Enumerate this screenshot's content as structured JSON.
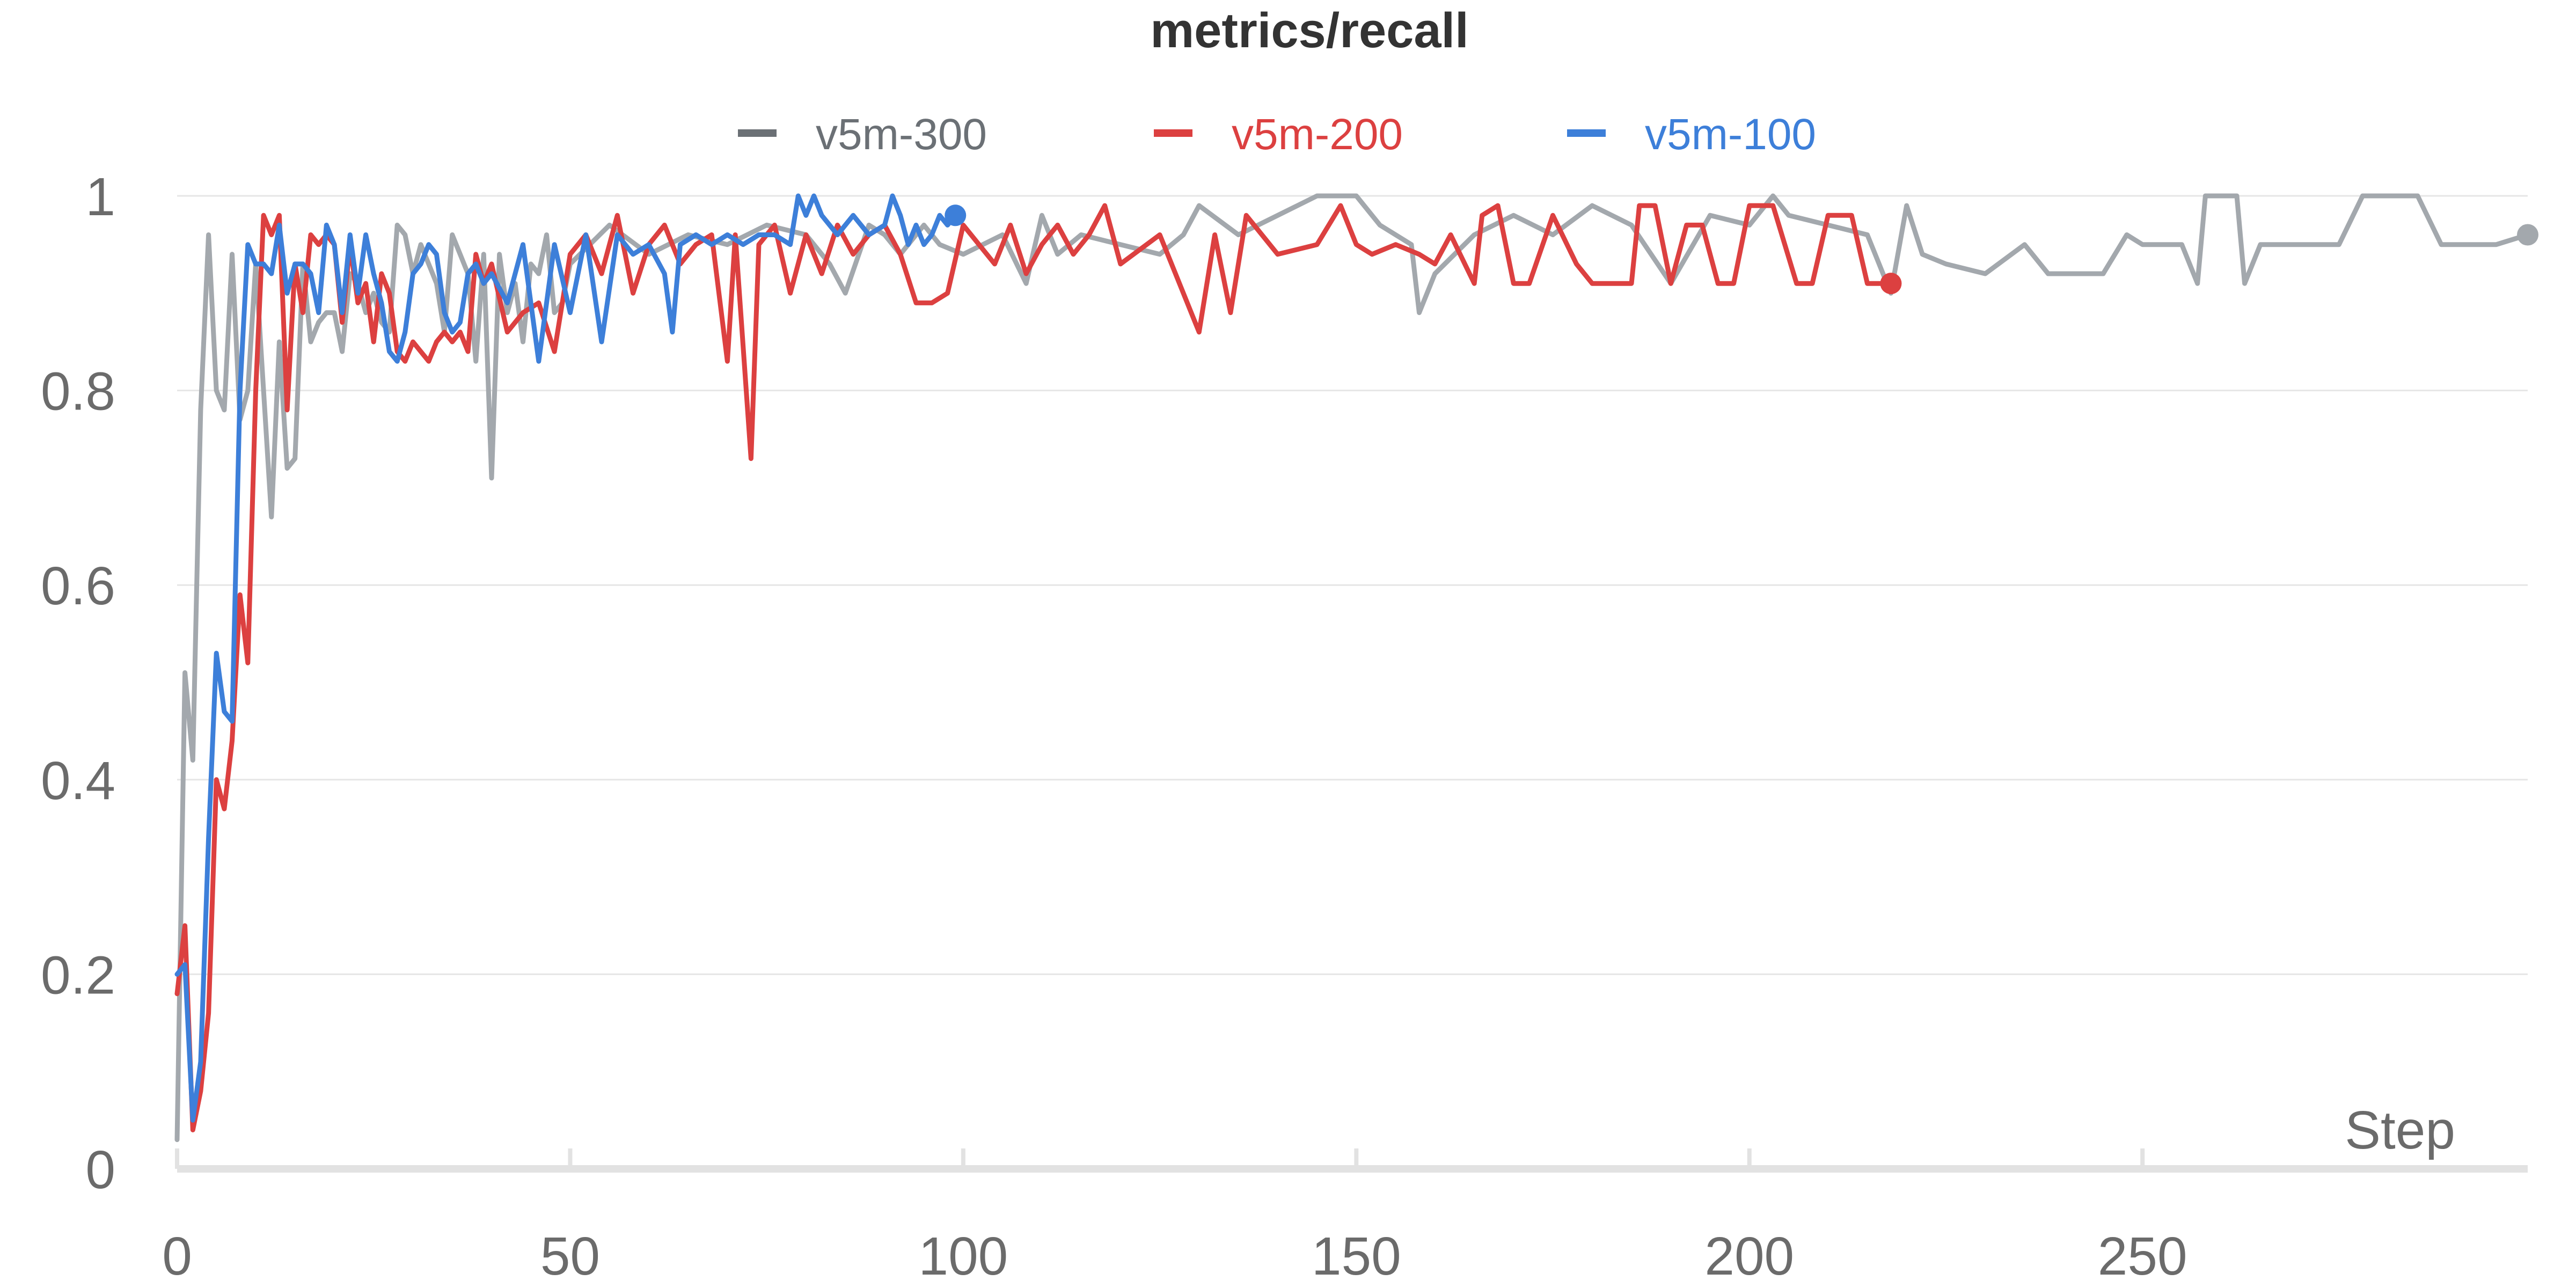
{
  "chart_data": {
    "type": "line",
    "title": "metrics/recall",
    "xlabel": "Step",
    "ylabel": "",
    "xlim": [
      0,
      299
    ],
    "ylim": [
      0,
      1
    ],
    "x_ticks": [
      0,
      50,
      100,
      150,
      200,
      250
    ],
    "y_ticks": [
      0,
      0.2,
      0.4,
      0.6,
      0.8,
      1
    ],
    "y_tick_labels": [
      "0",
      "0.2",
      "0.4",
      "0.6",
      "0.8",
      "1"
    ],
    "grid": true,
    "legend_position": "top-center",
    "series": [
      {
        "name": "v5m-300",
        "color": "#a3a8ad",
        "legend_color": "#6b7075",
        "points": [
          [
            0,
            0.03
          ],
          [
            1,
            0.51
          ],
          [
            2,
            0.42
          ],
          [
            3,
            0.78
          ],
          [
            4,
            0.96
          ],
          [
            5,
            0.8
          ],
          [
            6,
            0.78
          ],
          [
            7,
            0.94
          ],
          [
            8,
            0.77
          ],
          [
            9,
            0.8
          ],
          [
            10,
            0.93
          ],
          [
            11,
            0.8
          ],
          [
            12,
            0.67
          ],
          [
            13,
            0.85
          ],
          [
            14,
            0.72
          ],
          [
            15,
            0.73
          ],
          [
            16,
            0.93
          ],
          [
            17,
            0.85
          ],
          [
            18,
            0.87
          ],
          [
            19,
            0.88
          ],
          [
            20,
            0.88
          ],
          [
            21,
            0.84
          ],
          [
            22,
            0.92
          ],
          [
            23,
            0.91
          ],
          [
            24,
            0.88
          ],
          [
            25,
            0.9
          ],
          [
            26,
            0.87
          ],
          [
            27,
            0.86
          ],
          [
            28,
            0.97
          ],
          [
            29,
            0.96
          ],
          [
            30,
            0.92
          ],
          [
            31,
            0.95
          ],
          [
            32,
            0.93
          ],
          [
            33,
            0.91
          ],
          [
            34,
            0.86
          ],
          [
            35,
            0.96
          ],
          [
            36,
            0.94
          ],
          [
            37,
            0.92
          ],
          [
            38,
            0.83
          ],
          [
            39,
            0.94
          ],
          [
            40,
            0.71
          ],
          [
            41,
            0.94
          ],
          [
            42,
            0.88
          ],
          [
            43,
            0.91
          ],
          [
            44,
            0.85
          ],
          [
            45,
            0.93
          ],
          [
            46,
            0.92
          ],
          [
            47,
            0.96
          ],
          [
            48,
            0.88
          ],
          [
            49,
            0.89
          ],
          [
            50,
            0.93
          ],
          [
            55,
            0.97
          ],
          [
            60,
            0.94
          ],
          [
            65,
            0.96
          ],
          [
            70,
            0.95
          ],
          [
            75,
            0.97
          ],
          [
            80,
            0.96
          ],
          [
            83,
            0.93
          ],
          [
            85,
            0.9
          ],
          [
            88,
            0.97
          ],
          [
            90,
            0.96
          ],
          [
            92,
            0.94
          ],
          [
            95,
            0.97
          ],
          [
            97,
            0.95
          ],
          [
            100,
            0.94
          ],
          [
            105,
            0.96
          ],
          [
            108,
            0.91
          ],
          [
            110,
            0.98
          ],
          [
            112,
            0.94
          ],
          [
            115,
            0.96
          ],
          [
            120,
            0.95
          ],
          [
            125,
            0.94
          ],
          [
            128,
            0.96
          ],
          [
            130,
            0.99
          ],
          [
            135,
            0.96
          ],
          [
            140,
            0.98
          ],
          [
            145,
            1.0
          ],
          [
            150,
            1.0
          ],
          [
            153,
            0.97
          ],
          [
            157,
            0.95
          ],
          [
            158,
            0.88
          ],
          [
            160,
            0.92
          ],
          [
            165,
            0.96
          ],
          [
            170,
            0.98
          ],
          [
            175,
            0.96
          ],
          [
            180,
            0.99
          ],
          [
            185,
            0.97
          ],
          [
            190,
            0.91
          ],
          [
            195,
            0.98
          ],
          [
            200,
            0.97
          ],
          [
            203,
            1.0
          ],
          [
            205,
            0.98
          ],
          [
            210,
            0.97
          ],
          [
            215,
            0.96
          ],
          [
            218,
            0.9
          ],
          [
            220,
            0.99
          ],
          [
            222,
            0.94
          ],
          [
            225,
            0.93
          ],
          [
            230,
            0.92
          ],
          [
            235,
            0.95
          ],
          [
            238,
            0.92
          ],
          [
            245,
            0.92
          ],
          [
            248,
            0.96
          ],
          [
            250,
            0.95
          ],
          [
            255,
            0.95
          ],
          [
            257,
            0.91
          ],
          [
            258,
            1.0
          ],
          [
            262,
            1.0
          ],
          [
            263,
            0.91
          ],
          [
            265,
            0.95
          ],
          [
            270,
            0.95
          ],
          [
            275,
            0.95
          ],
          [
            278,
            1.0
          ],
          [
            285,
            1.0
          ],
          [
            288,
            0.95
          ],
          [
            295,
            0.95
          ],
          [
            299,
            0.96
          ]
        ]
      },
      {
        "name": "v5m-200",
        "color": "#dc4040",
        "legend_color": "#dc4040",
        "points": [
          [
            0,
            0.18
          ],
          [
            1,
            0.25
          ],
          [
            2,
            0.04
          ],
          [
            3,
            0.08
          ],
          [
            4,
            0.16
          ],
          [
            5,
            0.4
          ],
          [
            6,
            0.37
          ],
          [
            7,
            0.44
          ],
          [
            8,
            0.59
          ],
          [
            9,
            0.52
          ],
          [
            10,
            0.8
          ],
          [
            11,
            0.98
          ],
          [
            12,
            0.96
          ],
          [
            13,
            0.98
          ],
          [
            14,
            0.78
          ],
          [
            15,
            0.93
          ],
          [
            16,
            0.88
          ],
          [
            17,
            0.96
          ],
          [
            18,
            0.95
          ],
          [
            19,
            0.96
          ],
          [
            20,
            0.95
          ],
          [
            21,
            0.87
          ],
          [
            22,
            0.95
          ],
          [
            23,
            0.89
          ],
          [
            24,
            0.91
          ],
          [
            25,
            0.85
          ],
          [
            26,
            0.92
          ],
          [
            27,
            0.9
          ],
          [
            28,
            0.84
          ],
          [
            29,
            0.83
          ],
          [
            30,
            0.85
          ],
          [
            31,
            0.84
          ],
          [
            32,
            0.83
          ],
          [
            33,
            0.85
          ],
          [
            34,
            0.86
          ],
          [
            35,
            0.85
          ],
          [
            36,
            0.86
          ],
          [
            37,
            0.84
          ],
          [
            38,
            0.94
          ],
          [
            39,
            0.91
          ],
          [
            40,
            0.93
          ],
          [
            42,
            0.86
          ],
          [
            44,
            0.88
          ],
          [
            46,
            0.89
          ],
          [
            48,
            0.84
          ],
          [
            50,
            0.94
          ],
          [
            52,
            0.96
          ],
          [
            54,
            0.92
          ],
          [
            56,
            0.98
          ],
          [
            58,
            0.9
          ],
          [
            60,
            0.95
          ],
          [
            62,
            0.97
          ],
          [
            64,
            0.93
          ],
          [
            66,
            0.95
          ],
          [
            68,
            0.96
          ],
          [
            70,
            0.83
          ],
          [
            71,
            0.96
          ],
          [
            73,
            0.73
          ],
          [
            74,
            0.95
          ],
          [
            76,
            0.97
          ],
          [
            78,
            0.9
          ],
          [
            80,
            0.96
          ],
          [
            82,
            0.92
          ],
          [
            84,
            0.97
          ],
          [
            86,
            0.94
          ],
          [
            88,
            0.96
          ],
          [
            90,
            0.97
          ],
          [
            92,
            0.94
          ],
          [
            94,
            0.89
          ],
          [
            96,
            0.89
          ],
          [
            98,
            0.9
          ],
          [
            100,
            0.97
          ],
          [
            102,
            0.95
          ],
          [
            104,
            0.93
          ],
          [
            106,
            0.97
          ],
          [
            108,
            0.92
          ],
          [
            110,
            0.95
          ],
          [
            112,
            0.97
          ],
          [
            114,
            0.94
          ],
          [
            116,
            0.96
          ],
          [
            118,
            0.99
          ],
          [
            120,
            0.93
          ],
          [
            125,
            0.96
          ],
          [
            130,
            0.86
          ],
          [
            132,
            0.96
          ],
          [
            134,
            0.88
          ],
          [
            136,
            0.98
          ],
          [
            140,
            0.94
          ],
          [
            145,
            0.95
          ],
          [
            148,
            0.99
          ],
          [
            150,
            0.95
          ],
          [
            152,
            0.94
          ],
          [
            155,
            0.95
          ],
          [
            158,
            0.94
          ],
          [
            160,
            0.93
          ],
          [
            162,
            0.96
          ],
          [
            165,
            0.91
          ],
          [
            166,
            0.98
          ],
          [
            168,
            0.99
          ],
          [
            170,
            0.91
          ],
          [
            172,
            0.91
          ],
          [
            175,
            0.98
          ],
          [
            178,
            0.93
          ],
          [
            180,
            0.91
          ],
          [
            185,
            0.91
          ],
          [
            186,
            0.99
          ],
          [
            188,
            0.99
          ],
          [
            190,
            0.91
          ],
          [
            192,
            0.97
          ],
          [
            194,
            0.97
          ],
          [
            196,
            0.91
          ],
          [
            198,
            0.91
          ],
          [
            200,
            0.99
          ],
          [
            203,
            0.99
          ],
          [
            206,
            0.91
          ],
          [
            208,
            0.91
          ],
          [
            210,
            0.98
          ],
          [
            213,
            0.98
          ],
          [
            215,
            0.91
          ],
          [
            217,
            0.91
          ],
          [
            218,
            0.91
          ]
        ]
      },
      {
        "name": "v5m-100",
        "color": "#3d7fd9",
        "legend_color": "#3d7fd9",
        "points": [
          [
            0,
            0.2
          ],
          [
            1,
            0.21
          ],
          [
            2,
            0.05
          ],
          [
            3,
            0.11
          ],
          [
            4,
            0.34
          ],
          [
            5,
            0.53
          ],
          [
            6,
            0.47
          ],
          [
            7,
            0.46
          ],
          [
            8,
            0.8
          ],
          [
            9,
            0.95
          ],
          [
            10,
            0.93
          ],
          [
            11,
            0.93
          ],
          [
            12,
            0.92
          ],
          [
            13,
            0.97
          ],
          [
            14,
            0.9
          ],
          [
            15,
            0.93
          ],
          [
            16,
            0.93
          ],
          [
            17,
            0.92
          ],
          [
            18,
            0.88
          ],
          [
            19,
            0.97
          ],
          [
            20,
            0.95
          ],
          [
            21,
            0.88
          ],
          [
            22,
            0.96
          ],
          [
            23,
            0.9
          ],
          [
            24,
            0.96
          ],
          [
            25,
            0.92
          ],
          [
            26,
            0.89
          ],
          [
            27,
            0.84
          ],
          [
            28,
            0.83
          ],
          [
            29,
            0.86
          ],
          [
            30,
            0.92
          ],
          [
            31,
            0.93
          ],
          [
            32,
            0.95
          ],
          [
            33,
            0.94
          ],
          [
            34,
            0.88
          ],
          [
            35,
            0.86
          ],
          [
            36,
            0.87
          ],
          [
            37,
            0.92
          ],
          [
            38,
            0.93
          ],
          [
            39,
            0.91
          ],
          [
            40,
            0.92
          ],
          [
            42,
            0.89
          ],
          [
            44,
            0.95
          ],
          [
            46,
            0.83
          ],
          [
            48,
            0.95
          ],
          [
            50,
            0.88
          ],
          [
            52,
            0.96
          ],
          [
            54,
            0.85
          ],
          [
            56,
            0.96
          ],
          [
            58,
            0.94
          ],
          [
            60,
            0.95
          ],
          [
            62,
            0.92
          ],
          [
            63,
            0.86
          ],
          [
            64,
            0.95
          ],
          [
            66,
            0.96
          ],
          [
            68,
            0.95
          ],
          [
            70,
            0.96
          ],
          [
            72,
            0.95
          ],
          [
            74,
            0.96
          ],
          [
            76,
            0.96
          ],
          [
            78,
            0.95
          ],
          [
            79,
            1.0
          ],
          [
            80,
            0.98
          ],
          [
            81,
            1.0
          ],
          [
            82,
            0.98
          ],
          [
            84,
            0.96
          ],
          [
            86,
            0.98
          ],
          [
            88,
            0.96
          ],
          [
            90,
            0.97
          ],
          [
            91,
            1.0
          ],
          [
            92,
            0.98
          ],
          [
            93,
            0.95
          ],
          [
            94,
            0.97
          ],
          [
            95,
            0.95
          ],
          [
            96,
            0.96
          ],
          [
            97,
            0.98
          ],
          [
            98,
            0.97
          ],
          [
            99,
            0.98
          ]
        ]
      }
    ]
  }
}
